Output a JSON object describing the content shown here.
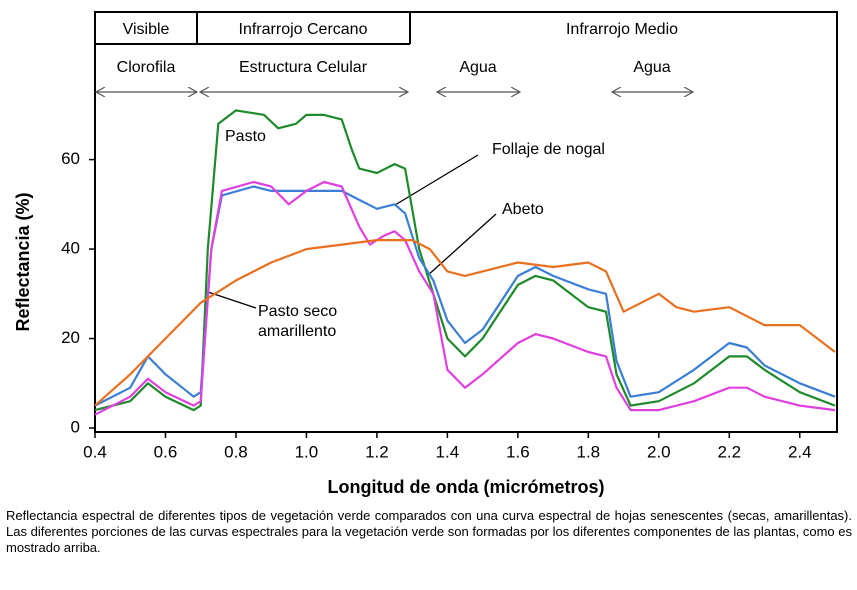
{
  "chart_data": {
    "type": "line",
    "header": {
      "regions": [
        "Visible",
        "Infrarrojo Cercano",
        "Infrarrojo Medio"
      ],
      "components": [
        "Clorofila",
        "Estructura Celular",
        "Agua",
        "Agua"
      ]
    },
    "xlabel": "Longitud de onda (micrómetros)",
    "ylabel": "Reflectancia (%)",
    "xlim": [
      0.4,
      2.5
    ],
    "ylim": [
      0,
      93
    ],
    "xticks": [
      0.4,
      0.6,
      0.8,
      {
        "value": 1,
        "label": "1.0"
      },
      1.2,
      1.4,
      1.6,
      1.8,
      {
        "value": 2,
        "label": "2.0"
      },
      2.2,
      2.4
    ],
    "yticks": [
      0,
      20,
      40,
      60
    ],
    "series": [
      {
        "name": "Pasto",
        "color": "#1e8a2a",
        "x": [
          0.4,
          0.5,
          0.55,
          0.6,
          0.68,
          0.7,
          0.72,
          0.75,
          0.8,
          0.88,
          0.92,
          0.97,
          1.0,
          1.05,
          1.1,
          1.13,
          1.15,
          1.2,
          1.25,
          1.28,
          1.32,
          1.36,
          1.4,
          1.45,
          1.5,
          1.6,
          1.65,
          1.7,
          1.8,
          1.85,
          1.88,
          1.92,
          2.0,
          2.1,
          2.2,
          2.25,
          2.3,
          2.4,
          2.5
        ],
        "values": [
          4,
          6,
          10,
          7,
          4,
          5,
          40,
          68,
          71,
          70,
          67,
          68,
          70,
          70,
          69,
          62,
          58,
          57,
          59,
          58,
          40,
          30,
          20,
          16,
          20,
          32,
          34,
          33,
          27,
          26,
          12,
          5,
          6,
          10,
          16,
          16,
          13,
          8,
          5
        ]
      },
      {
        "name": "Follaje de nogal",
        "color": "#3a7fd5",
        "x": [
          0.4,
          0.5,
          0.55,
          0.6,
          0.68,
          0.7,
          0.73,
          0.76,
          0.85,
          0.9,
          1.0,
          1.1,
          1.15,
          1.2,
          1.25,
          1.28,
          1.32,
          1.36,
          1.4,
          1.45,
          1.5,
          1.6,
          1.65,
          1.7,
          1.8,
          1.85,
          1.88,
          1.92,
          2.0,
          2.1,
          2.2,
          2.25,
          2.3,
          2.4,
          2.5
        ],
        "values": [
          5,
          9,
          16,
          12,
          7,
          8,
          40,
          52,
          54,
          53,
          53,
          53,
          51,
          49,
          50,
          48,
          38,
          33,
          24,
          19,
          22,
          34,
          36,
          34,
          31,
          30,
          15,
          7,
          8,
          13,
          19,
          18,
          14,
          10,
          7
        ]
      },
      {
        "name": "Abeto",
        "color": "#e040e0",
        "x": [
          0.4,
          0.5,
          0.55,
          0.6,
          0.68,
          0.7,
          0.73,
          0.76,
          0.85,
          0.9,
          0.95,
          1.0,
          1.05,
          1.1,
          1.15,
          1.18,
          1.22,
          1.25,
          1.28,
          1.32,
          1.36,
          1.4,
          1.45,
          1.5,
          1.6,
          1.65,
          1.7,
          1.8,
          1.85,
          1.88,
          1.92,
          2.0,
          2.1,
          2.2,
          2.25,
          2.3,
          2.4,
          2.5
        ],
        "values": [
          3,
          7,
          11,
          8,
          5,
          6,
          40,
          53,
          55,
          54,
          50,
          53,
          55,
          54,
          45,
          41,
          43,
          44,
          42,
          35,
          30,
          13,
          9,
          12,
          19,
          21,
          20,
          17,
          16,
          9,
          4,
          4,
          6,
          9,
          9,
          7,
          5,
          4
        ]
      },
      {
        "name": "Pasto seco amarillento",
        "color": "#e8701e",
        "x": [
          0.4,
          0.5,
          0.6,
          0.7,
          0.8,
          0.9,
          1.0,
          1.1,
          1.2,
          1.3,
          1.35,
          1.4,
          1.45,
          1.5,
          1.6,
          1.7,
          1.8,
          1.85,
          1.9,
          1.95,
          2.0,
          2.05,
          2.1,
          2.2,
          2.3,
          2.4,
          2.5
        ],
        "values": [
          5,
          12,
          20,
          28,
          33,
          37,
          40,
          41,
          42,
          42,
          40,
          35,
          34,
          35,
          37,
          36,
          37,
          35,
          26,
          28,
          30,
          27,
          26,
          27,
          23,
          23,
          17
        ]
      }
    ],
    "caption": "Reflectancia espectral de diferentes tipos de vegetación verde comparados con una curva espectral de hojas senescentes (secas, amarillentas).  Las diferentes porciones de las curvas espectrales para la vegetación verde son formadas por los diferentes componentes de las plantas, como es mostrado arriba."
  }
}
